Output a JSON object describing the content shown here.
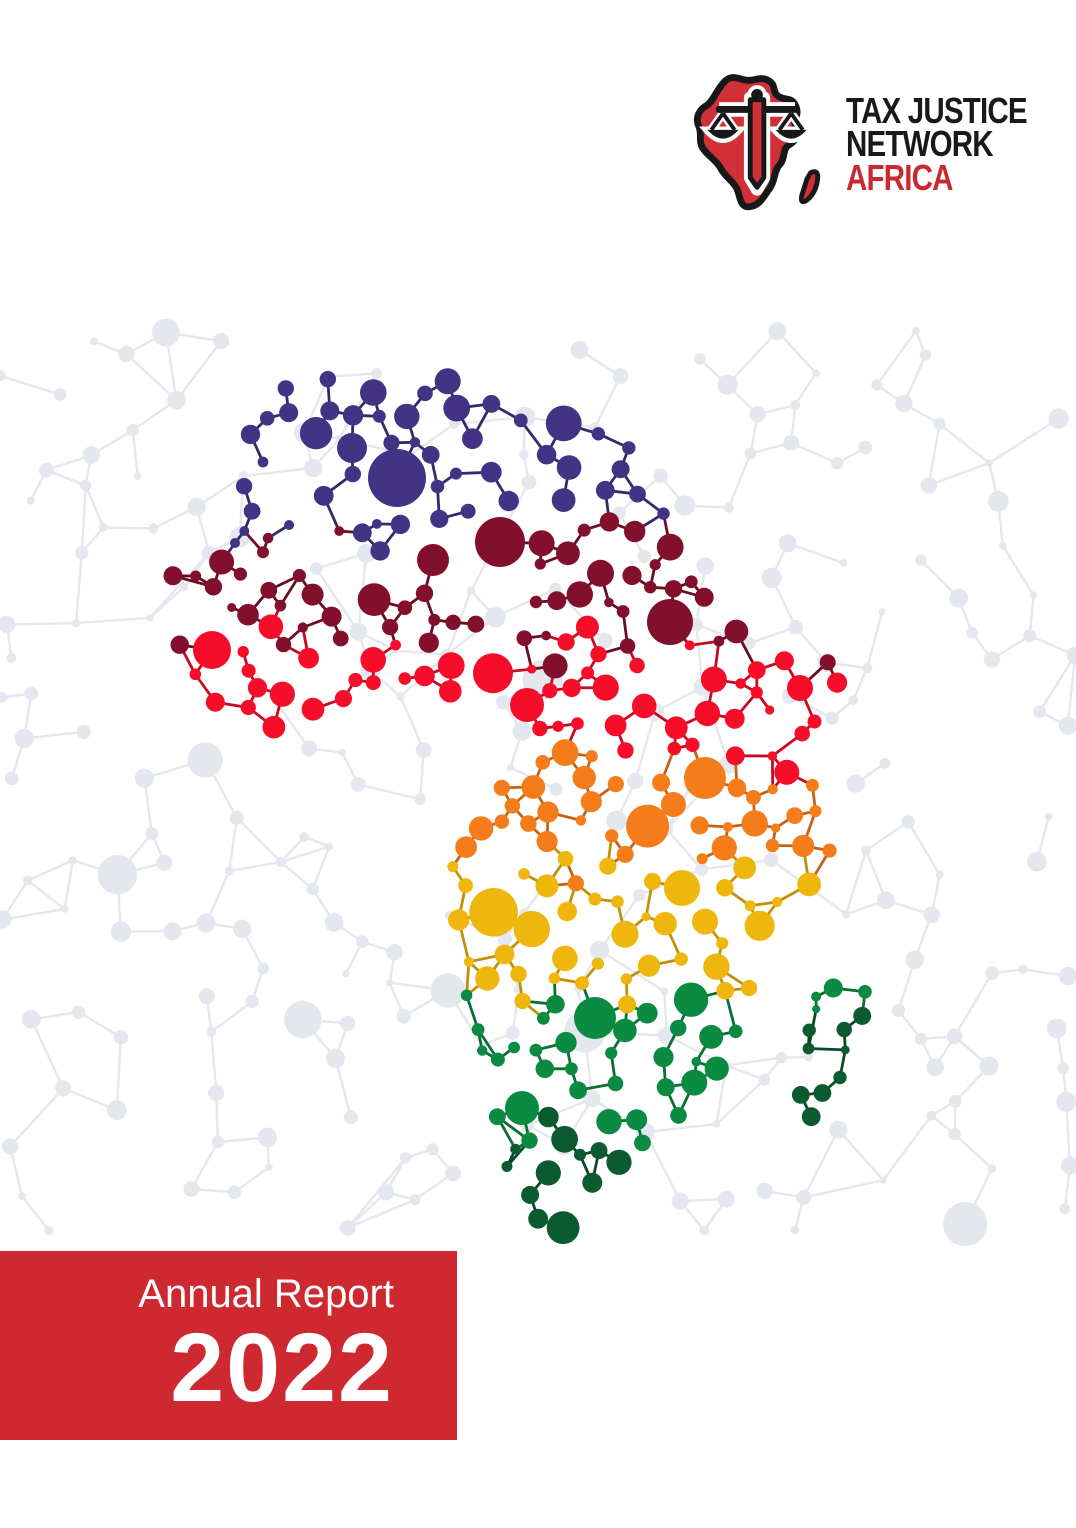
{
  "document": {
    "kind": "annual-report-cover"
  },
  "logo": {
    "org_line1": "TAX JUSTICE",
    "org_line2": "NETWORK",
    "org_line3": "AFRICA",
    "mark": "africa-scales-icon",
    "mark_fill": "#d23037",
    "mark_outline": "#181818",
    "africa_text_color": "#cb2930"
  },
  "banner": {
    "label": "Annual Report",
    "year": "2022",
    "background": "#ce2830",
    "text_color": "#ffffff"
  },
  "artwork": {
    "type": "dot-network-africa-map",
    "background_network_color": "#e4e7ee",
    "bands": [
      {
        "name": "purple",
        "color": "#433385",
        "until": 535
      },
      {
        "name": "maroon",
        "color": "#82102c",
        "until": 648
      },
      {
        "name": "red",
        "color": "#f60d29",
        "until": 768
      },
      {
        "name": "orange",
        "color": "#f57c1b",
        "until": 866
      },
      {
        "name": "yellow",
        "color": "#efb70d",
        "until": 1005
      },
      {
        "name": "green",
        "color": "#0b8b41",
        "until": 1125
      },
      {
        "name": "dark-green",
        "color": "#0b5a30",
        "until": 99999
      }
    ]
  }
}
